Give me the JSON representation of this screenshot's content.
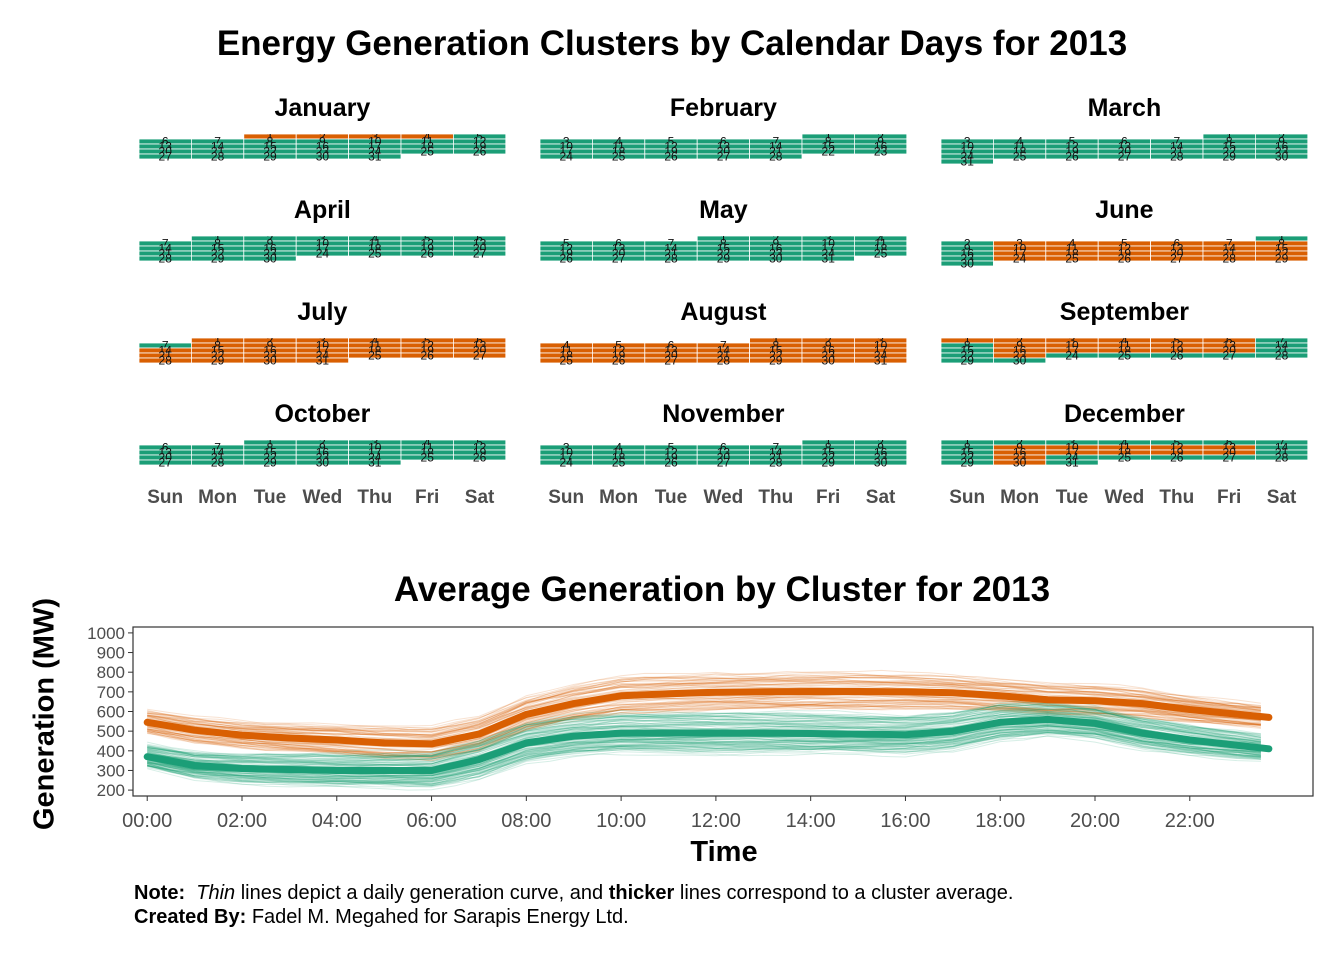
{
  "title": "Energy Generation Clusters by Calendar Days for 2013",
  "day_labels": [
    "Sun",
    "Mon",
    "Tue",
    "Wed",
    "Thu",
    "Fri",
    "Sat"
  ],
  "colors": {
    "cluster_green": "#1b9e77",
    "cluster_orange": "#d95f02"
  },
  "calendar": {
    "year": 2013,
    "months": [
      {
        "name": "January",
        "start_dow": 2,
        "days": 31,
        "orange_days": [
          1,
          2,
          3,
          4
        ]
      },
      {
        "name": "February",
        "start_dow": 5,
        "days": 28,
        "orange_days": []
      },
      {
        "name": "March",
        "start_dow": 5,
        "days": 31,
        "orange_days": []
      },
      {
        "name": "April",
        "start_dow": 1,
        "days": 30,
        "orange_days": []
      },
      {
        "name": "May",
        "start_dow": 3,
        "days": 31,
        "orange_days": []
      },
      {
        "name": "June",
        "start_dow": 6,
        "days": 30,
        "orange_days": [
          3,
          4,
          5,
          6,
          7,
          8,
          10,
          11,
          12,
          13,
          14,
          15,
          17,
          18,
          19,
          20,
          21,
          22,
          24,
          25,
          26,
          27,
          28,
          29
        ]
      },
      {
        "name": "July",
        "start_dow": 1,
        "days": 31,
        "orange_days": [
          1,
          2,
          3,
          4,
          5,
          6,
          8,
          9,
          10,
          11,
          12,
          13,
          14,
          15,
          16,
          17,
          18,
          19,
          20,
          21,
          22,
          23,
          24,
          25,
          26,
          27,
          28,
          29,
          30,
          31
        ]
      },
      {
        "name": "August",
        "start_dow": 4,
        "days": 31,
        "orange_days": [
          1,
          2,
          3,
          4,
          5,
          6,
          7,
          8,
          9,
          10,
          11,
          12,
          13,
          14,
          15,
          16,
          17,
          18,
          19,
          20,
          21,
          22,
          23,
          24,
          25,
          26,
          27,
          28,
          29,
          30,
          31
        ]
      },
      {
        "name": "September",
        "start_dow": 0,
        "days": 30,
        "orange_days": [
          1,
          2,
          3,
          4,
          5,
          6,
          9,
          10,
          11,
          12,
          13,
          16,
          17,
          18,
          19,
          20,
          23
        ]
      },
      {
        "name": "October",
        "start_dow": 2,
        "days": 31,
        "orange_days": []
      },
      {
        "name": "November",
        "start_dow": 5,
        "days": 30,
        "orange_days": []
      },
      {
        "name": "December",
        "start_dow": 0,
        "days": 31,
        "orange_days": [
          9,
          10,
          11,
          12,
          13,
          16,
          17,
          18,
          19,
          20,
          23,
          30
        ]
      }
    ]
  },
  "chart_data": {
    "type": "line",
    "title": "Average Generation by Cluster for 2013",
    "xlabel": "Time",
    "ylabel": "Generation (MW)",
    "x_ticks": [
      "00:00",
      "02:00",
      "04:00",
      "06:00",
      "08:00",
      "10:00",
      "12:00",
      "14:00",
      "16:00",
      "18:00",
      "20:00",
      "22:00"
    ],
    "y_ticks": [
      200,
      300,
      400,
      500,
      600,
      700,
      800,
      900,
      1000
    ],
    "xlim": [
      -0.3,
      24.6
    ],
    "ylim": [
      170,
      1030
    ],
    "grid": false,
    "series": [
      {
        "color": "#d95f02",
        "x": [
          0,
          1,
          2,
          3,
          4,
          5,
          6,
          7,
          8,
          9,
          10,
          11,
          12,
          13,
          14,
          15,
          16,
          17,
          18,
          19,
          20,
          21,
          22,
          23.67
        ],
        "values": [
          545,
          505,
          480,
          465,
          455,
          440,
          435,
          485,
          585,
          640,
          680,
          690,
          698,
          700,
          702,
          702,
          700,
          695,
          680,
          660,
          655,
          640,
          610,
          570
        ]
      },
      {
        "color": "#1b9e77",
        "x": [
          0,
          1,
          2,
          3,
          4,
          5,
          6,
          7,
          8,
          9,
          10,
          11,
          12,
          13,
          14,
          15,
          16,
          17,
          18,
          19,
          20,
          21,
          22,
          23.67
        ],
        "values": [
          370,
          325,
          310,
          305,
          300,
          300,
          300,
          355,
          440,
          475,
          490,
          490,
          490,
          490,
          488,
          485,
          482,
          500,
          545,
          560,
          540,
          490,
          455,
          410
        ]
      }
    ]
  },
  "note": {
    "note_label": "Note:",
    "note_italic": "Thin",
    "note_mid": " lines depict a daily generation curve, and ",
    "note_bold": "thicker",
    "note_end": " lines correspond to a cluster average.",
    "created_label": "Created By:",
    "created_text": " Fadel M. Megahed for Sarapis Energy Ltd."
  }
}
